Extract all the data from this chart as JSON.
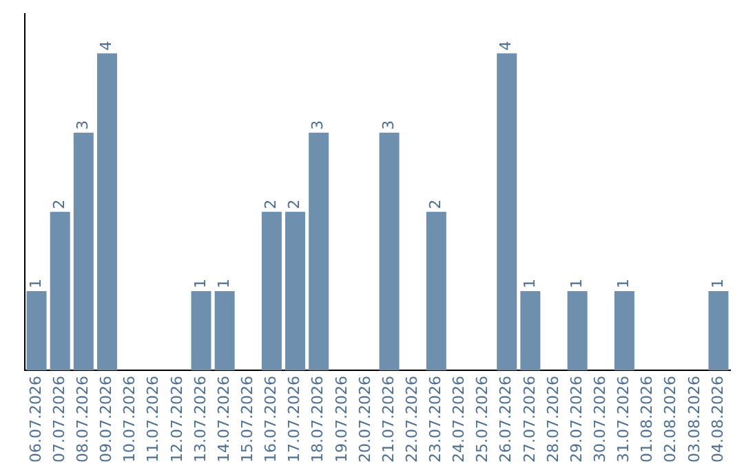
{
  "chart_data": {
    "type": "bar",
    "categories": [
      "06.07.2026",
      "07.07.2026",
      "08.07.2026",
      "09.07.2026",
      "10.07.2026",
      "11.07.2026",
      "12.07.2026",
      "13.07.2026",
      "14.07.2026",
      "15.07.2026",
      "16.07.2026",
      "17.07.2026",
      "18.07.2026",
      "19.07.2026",
      "20.07.2026",
      "21.07.2026",
      "22.07.2026",
      "23.07.2026",
      "24.07.2026",
      "25.07.2026",
      "26.07.2026",
      "27.07.2026",
      "28.07.2026",
      "29.07.2026",
      "30.07.2026",
      "31.07.2026",
      "01.08.2026",
      "02.08.2026",
      "03.08.2026",
      "04.08.2026"
    ],
    "values": [
      1,
      2,
      3,
      4,
      0,
      0,
      0,
      1,
      1,
      0,
      2,
      2,
      3,
      0,
      0,
      3,
      0,
      2,
      0,
      0,
      4,
      1,
      0,
      1,
      0,
      1,
      0,
      0,
      0,
      1
    ],
    "value_labels": [
      "1",
      "2",
      "3",
      "4",
      null,
      null,
      null,
      "1",
      "1",
      null,
      "2",
      "2",
      "3",
      null,
      null,
      "3",
      null,
      "2",
      null,
      null,
      "4",
      "1",
      null,
      "1",
      null,
      "1",
      null,
      null,
      null,
      "1"
    ],
    "color": "#6e8fae",
    "grid": false,
    "legend": false,
    "tick_labels": "x"
  }
}
